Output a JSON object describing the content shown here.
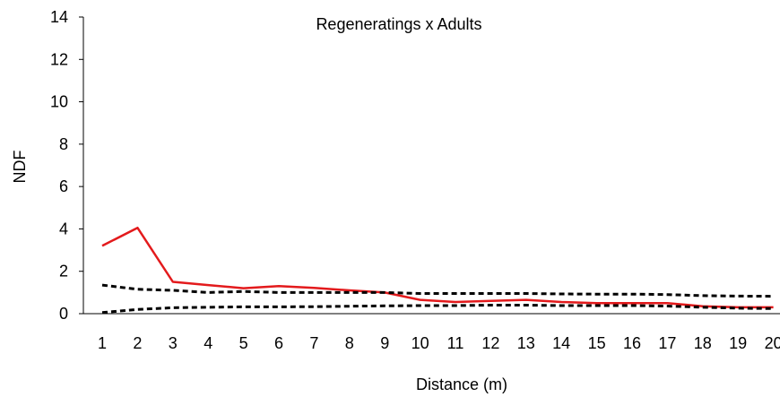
{
  "chart_data": {
    "type": "line",
    "title": "Regeneratings x Adults",
    "xlabel": "Distance (m)",
    "ylabel": "NDF",
    "ylim": [
      0,
      14
    ],
    "yticks": [
      0,
      2,
      4,
      6,
      8,
      10,
      12,
      14
    ],
    "grid": false,
    "legend": "none",
    "x": [
      "1",
      "2",
      "3",
      "4",
      "5",
      "6",
      "7",
      "8",
      "9",
      "10",
      "11",
      "12",
      "13",
      "14",
      "15",
      "16",
      "17",
      "18",
      "19",
      "20"
    ],
    "series": [
      {
        "color": "#e31a1c",
        "style": "solid",
        "values": [
          3.2,
          4.05,
          1.5,
          1.35,
          1.2,
          1.3,
          1.22,
          1.1,
          1.0,
          0.65,
          0.55,
          0.6,
          0.65,
          0.55,
          0.5,
          0.5,
          0.5,
          0.35,
          0.3,
          0.3
        ]
      },
      {
        "color": "#000000",
        "style": "dashed",
        "values": [
          1.35,
          1.15,
          1.1,
          1.0,
          1.05,
          1.0,
          1.0,
          1.0,
          1.0,
          0.95,
          0.95,
          0.95,
          0.95,
          0.93,
          0.92,
          0.92,
          0.9,
          0.85,
          0.83,
          0.82
        ]
      },
      {
        "color": "#000000",
        "style": "dashed",
        "values": [
          0.05,
          0.2,
          0.28,
          0.3,
          0.32,
          0.32,
          0.33,
          0.35,
          0.37,
          0.38,
          0.38,
          0.4,
          0.4,
          0.38,
          0.38,
          0.38,
          0.36,
          0.3,
          0.26,
          0.24
        ]
      }
    ]
  }
}
